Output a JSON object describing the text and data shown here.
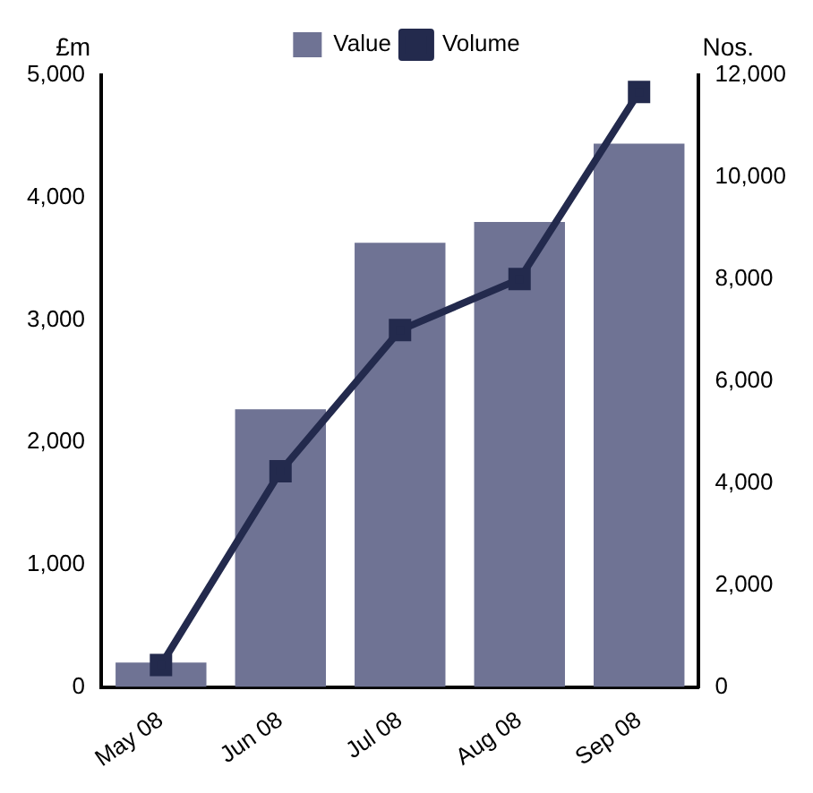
{
  "chart_data": {
    "type": "bar",
    "ylabel": "£m",
    "y2label": "Nos.",
    "categories": [
      "May 08",
      "Jun 08",
      "Jul 08",
      "Aug 08",
      "Sep 08"
    ],
    "series": [
      {
        "name": "Value",
        "color": "#6f7394",
        "values": [
          200,
          2270,
          3630,
          3800,
          4440
        ]
      },
      {
        "name": "Volume",
        "type": "line",
        "axis": "y2",
        "color": "#232a4d",
        "values": [
          430,
          4230,
          7000,
          8000,
          11670
        ]
      }
    ],
    "ylim": [
      0,
      5000
    ],
    "yticks": [
      0,
      {
        "value": 1000,
        "label": "1,000"
      },
      {
        "value": 2000,
        "label": "2,000"
      },
      {
        "value": 3000,
        "label": "3,000"
      },
      {
        "value": 4000,
        "label": "4,000"
      },
      {
        "value": 5000,
        "label": "5,000"
      }
    ],
    "y2lim": [
      0,
      12000
    ],
    "y2ticks": [
      0,
      {
        "value": 2000,
        "label": "2,000"
      },
      {
        "value": 4000,
        "label": "4,000"
      },
      {
        "value": 6000,
        "label": "6,000"
      },
      {
        "value": 8000,
        "label": "8,000"
      },
      {
        "value": 10000,
        "label": "10,000"
      },
      {
        "value": 12000,
        "label": "12,000"
      }
    ],
    "legend": "top",
    "grid": false,
    "marker": "square",
    "line_style": "solid"
  }
}
